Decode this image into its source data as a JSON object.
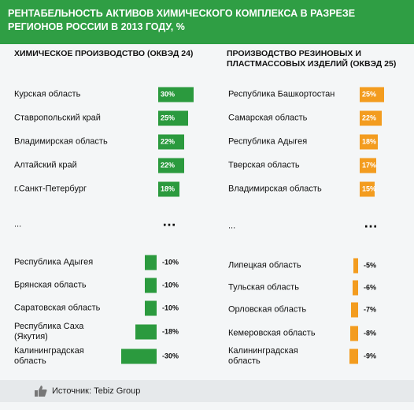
{
  "header": {
    "title": "РЕНТАБЕЛЬНОСТЬ АКТИВОВ ХИМИЧЕСКОГО КОМПЛЕКСА В РАЗРЕЗЕ РЕГИОНОВ РОССИИ В 2013 ГОДУ, %"
  },
  "chart_data": [
    {
      "type": "bar",
      "orientation": "horizontal",
      "title": "ХИМИЧЕСКОЕ ПРОИЗВОДСТВО (ОКВЭД 24)",
      "color": "#2b9a3e",
      "categories": [
        "Курская область",
        "Ставропольский край",
        "Владимирская область",
        "Алтайский край",
        "г.Санкт-Петербург",
        "...",
        "Республика Адыгея",
        "Брянская область",
        "Саратовская область",
        "Республика Саха\n(Якутия)",
        "Калининградская\nобласть"
      ],
      "values": [
        30,
        25,
        22,
        22,
        18,
        null,
        -10,
        -10,
        -10,
        -18,
        -30
      ],
      "value_labels": [
        "30%",
        "25%",
        "22%",
        "22%",
        "18%",
        "…",
        "-10%",
        "-10%",
        "-10%",
        "-18%",
        "-30%"
      ]
    },
    {
      "type": "bar",
      "orientation": "horizontal",
      "title": "ПРОИЗВОДСТВО РЕЗИНОВЫХ И\nПЛАСТМАССОВЫХ ИЗДЕЛИЙ (ОКВЭД 25)",
      "color": "#f39c1f",
      "categories": [
        "Республика Башкортостан",
        "Самарская область",
        "Республика Адыгея",
        "Тверская область",
        "Владимирская область",
        "...",
        "Липецкая область",
        "Тульская область",
        "Орловская область",
        "Кемеровская область",
        "Калининградская\nобласть"
      ],
      "values": [
        25,
        22,
        18,
        17,
        15,
        null,
        -5,
        -6,
        -7,
        -8,
        -9
      ],
      "value_labels": [
        "25%",
        "22%",
        "18%",
        "17%",
        "15%",
        "…",
        "-5%",
        "-6%",
        "-7%",
        "-8%",
        "-9%"
      ]
    }
  ],
  "source": "Источник: Tebiz Group"
}
